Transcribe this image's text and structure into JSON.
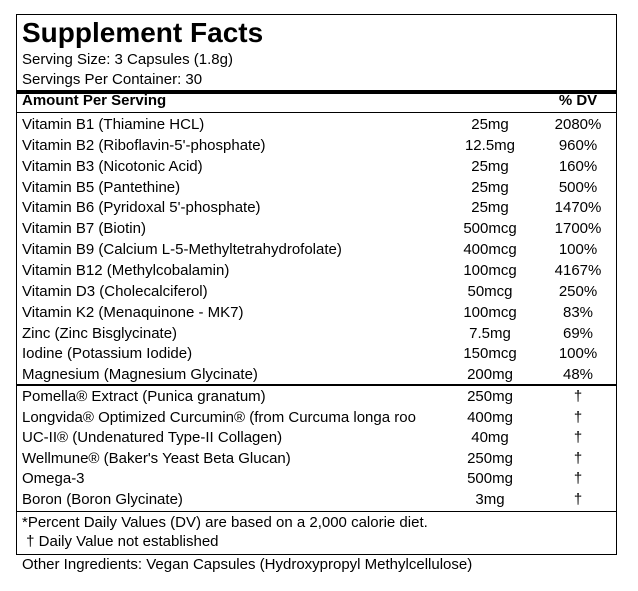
{
  "header": {
    "title": "Supplement Facts",
    "serving_size": "Serving Size: 3 Capsules (1.8g)",
    "servings_per_container": "Servings Per Container: 30"
  },
  "table": {
    "columns": [
      "Amount Per Serving",
      "% DV"
    ],
    "sections": [
      [
        [
          "Vitamin B1 (Thiamine HCL)",
          "25mg",
          "2080%"
        ],
        [
          "Vitamin B2 (Riboflavin-5'-phosphate)",
          "12.5mg",
          "960%"
        ],
        [
          "Vitamin B3 (Nicotonic Acid)",
          "25mg",
          "160%"
        ],
        [
          "Vitamin B5 (Pantethine)",
          "25mg",
          "500%"
        ],
        [
          "Vitamin B6 (Pyridoxal 5'-phosphate)",
          "25mg",
          "1470%"
        ],
        [
          "Vitamin B7 (Biotin)",
          "500mcg",
          "1700%"
        ],
        [
          "Vitamin B9 (Calcium L-5-Methyltetrahydrofolate)",
          "400mcg",
          "100%"
        ],
        [
          "Vitamin B12 (Methylcobalamin)",
          "100mcg",
          "4167%"
        ],
        [
          "Vitamin D3 (Cholecalciferol)",
          "50mcg",
          "250%"
        ],
        [
          "Vitamin K2 (Menaquinone - MK7)",
          "100mcg",
          "83%"
        ],
        [
          "Zinc (Zinc Bisglycinate)",
          "7.5mg",
          "69%"
        ],
        [
          "Iodine (Potassium Iodide)",
          "150mcg",
          "100%"
        ],
        [
          "Magnesium (Magnesium Glycinate)",
          "200mg",
          "48%"
        ]
      ],
      [
        [
          "Pomella® Extract (Punica granatum)",
          "250mg",
          "†"
        ],
        [
          "Longvida® Optimized Curcumin® (from Curcuma longa roo",
          "400mg",
          "†"
        ],
        [
          "UC-II® (Undenatured Type-II Collagen)",
          "40mg",
          "†"
        ],
        [
          "Wellmune® (Baker's Yeast Beta Glucan)",
          "250mg",
          "†"
        ],
        [
          "Omega-3",
          "500mg",
          "†"
        ],
        [
          "Boron (Boron Glycinate)",
          "3mg",
          "†"
        ]
      ]
    ]
  },
  "footnotes": [
    "*Percent Daily Values (DV) are based on a 2,000 calorie diet.",
    " † Daily Value not established"
  ],
  "other_ingredients": "Other Ingredients: Vegan Capsules (Hydroxypropyl Methylcellulose)"
}
